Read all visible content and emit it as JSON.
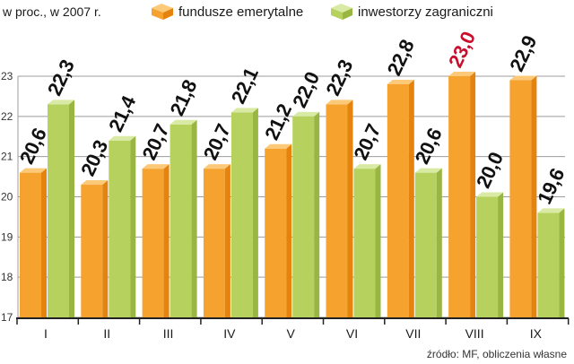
{
  "chart_data": {
    "type": "bar",
    "ylabel": "w proc., w 2007 r.",
    "categories": [
      "I",
      "II",
      "III",
      "IV",
      "V",
      "VI",
      "VII",
      "VIII",
      "IX"
    ],
    "series": [
      {
        "name": "fundusze emerytalne",
        "values": [
          20.6,
          20.3,
          20.7,
          20.7,
          21.2,
          22.3,
          22.8,
          23.0,
          22.9
        ],
        "labels": [
          "20,6",
          "20,3",
          "20,7",
          "20,7",
          "21,2",
          "22,3",
          "22,8",
          "23,0",
          "22,9"
        ],
        "color": "#f5a22f",
        "side_color": "#e4840f",
        "top_color": "#fbc978"
      },
      {
        "name": "inwestorzy zagraniczni",
        "values": [
          22.3,
          21.4,
          21.8,
          22.1,
          22.0,
          20.7,
          20.6,
          20.0,
          19.6
        ],
        "labels": [
          "22,3",
          "21,4",
          "21,8",
          "22,1",
          "22,0",
          "20,7",
          "20,6",
          "20,0",
          "19,6"
        ],
        "color": "#b6d15e",
        "side_color": "#98b641",
        "top_color": "#d9eaa4"
      }
    ],
    "ylim": [
      17,
      23
    ],
    "yticks": [
      17,
      18,
      19,
      20,
      21,
      22,
      23
    ],
    "grid": true,
    "legend": "top",
    "highlight": {
      "series": 0,
      "index": 7,
      "color": "#c8102e"
    },
    "source": "źródło: MF, obliczenia własne"
  }
}
